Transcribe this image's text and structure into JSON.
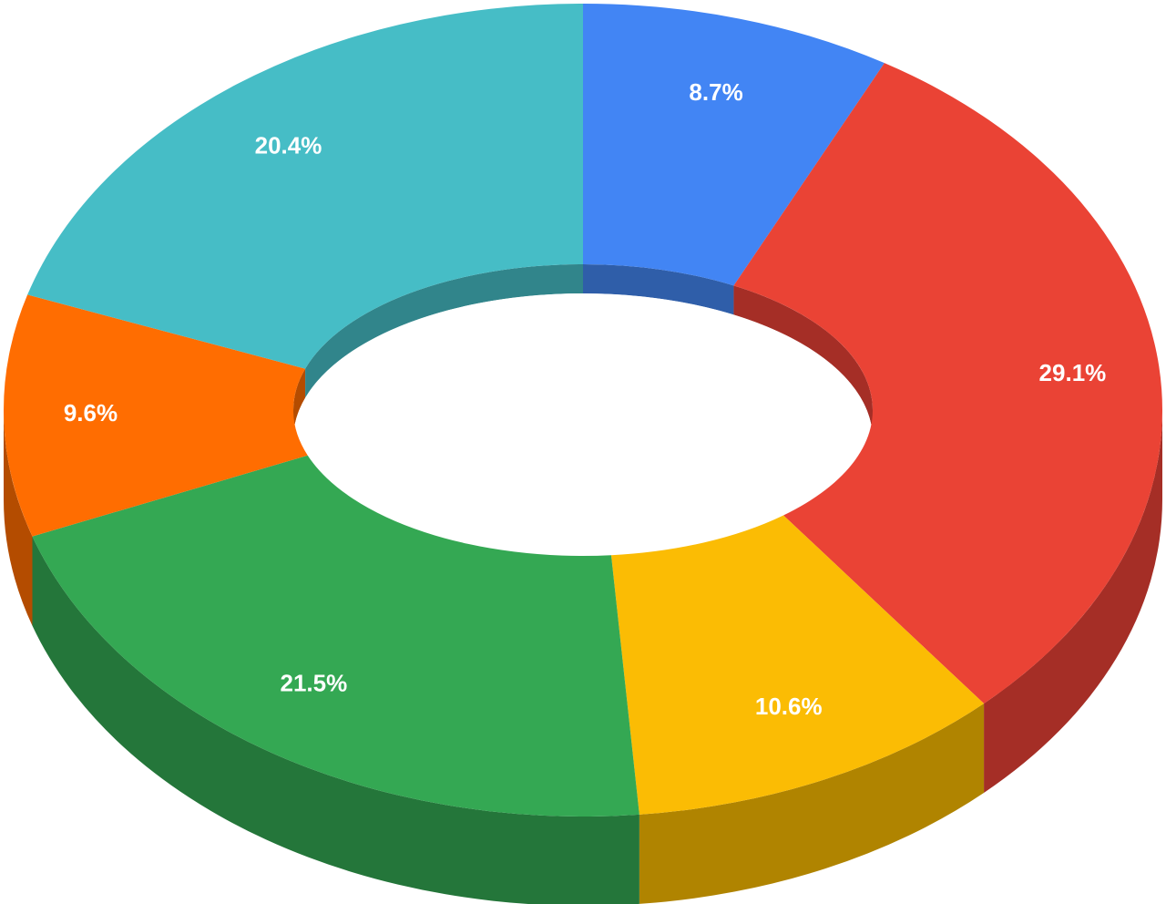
{
  "chart_data": {
    "type": "pie",
    "variant": "3d-donut",
    "title": "",
    "start_angle_deg": 0,
    "direction": "clockwise",
    "slices": [
      {
        "label": "8.7%",
        "value": 8.7,
        "color": "#4285f4",
        "side_color": "#2f5ea9"
      },
      {
        "label": "29.1%",
        "value": 29.1,
        "color": "#ea4335",
        "side_color": "#a52e26"
      },
      {
        "label": "10.6%",
        "value": 10.6,
        "color": "#fbbc04",
        "side_color": "#b08400"
      },
      {
        "label": "21.5%",
        "value": 21.5,
        "color": "#34a853",
        "side_color": "#24763a"
      },
      {
        "label": "9.6%",
        "value": 9.6,
        "color": "#ff6d01",
        "side_color": "#b44c00"
      },
      {
        "label": "20.4%",
        "value": 20.4,
        "color": "#46bdc6",
        "side_color": "#31858b"
      }
    ]
  }
}
